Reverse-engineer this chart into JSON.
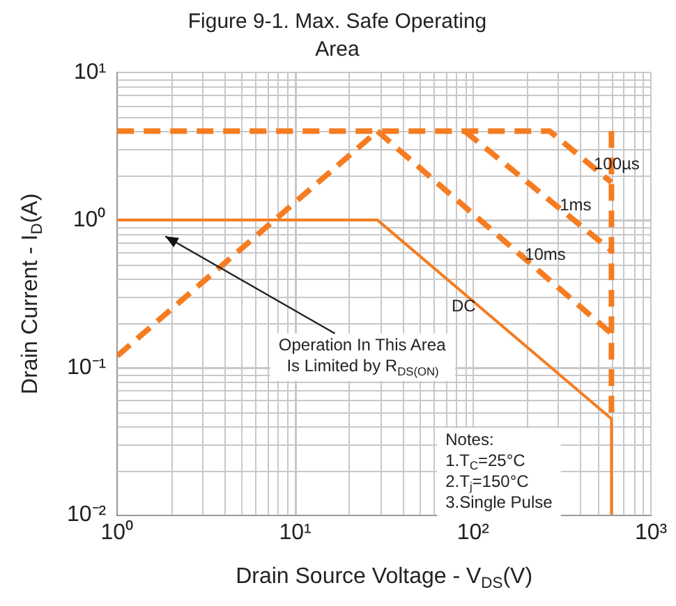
{
  "chart_data": {
    "type": "line",
    "title": "Figure 9-1. Max. Safe Operating Area",
    "xlabel": "Drain Source Voltage - V$_{DS}$(V)",
    "ylabel": "Drain Current - I$_{D}$(A)",
    "log": "xy",
    "xlim": [
      1,
      1000
    ],
    "ylim": [
      0.01,
      10
    ],
    "xticks": [
      {
        "value": 1,
        "label": "10⁰"
      },
      {
        "value": 10,
        "label": "10¹"
      },
      {
        "value": 100,
        "label": "10²"
      },
      {
        "value": 1000,
        "label": "10³"
      }
    ],
    "yticks": [
      {
        "value": 0.01,
        "label": "10⁻²"
      },
      {
        "value": 0.1,
        "label": "10⁻¹"
      },
      {
        "value": 1,
        "label": "10⁰"
      },
      {
        "value": 10,
        "label": "10¹"
      }
    ],
    "grid": true,
    "legend": false,
    "marker": "none",
    "series": [
      {
        "color": "#f57c20",
        "line_style": "dashed",
        "x": [
          1,
          29
        ],
        "values": [
          0.12,
          4
        ]
      },
      {
        "name": "100µs",
        "color": "#f57c20",
        "line_style": "dashed",
        "x": [
          1,
          270,
          600
        ],
        "values": [
          4,
          4,
          1.8
        ]
      },
      {
        "name": "1ms",
        "color": "#f57c20",
        "line_style": "dashed",
        "x": [
          90,
          600
        ],
        "values": [
          4,
          0.62
        ]
      },
      {
        "name": "10ms",
        "color": "#f57c20",
        "line_style": "dashed",
        "x": [
          29,
          600
        ],
        "values": [
          4,
          0.17
        ]
      },
      {
        "color": "#f57c20",
        "line_style": "dashed",
        "x": [
          600,
          600
        ],
        "values": [
          4,
          0.045
        ]
      },
      {
        "name": "DC",
        "color": "#f57c20",
        "line_style": "solid",
        "x": [
          1,
          29,
          600,
          600
        ],
        "values": [
          1,
          1,
          0.045,
          0.01
        ]
      }
    ],
    "annotations": [
      "Operation In This Area\nIs Limited by R$_{DS(ON)}$",
      "Notes:\n1.T$_{C}$=25°C\n2.T$_{j}$=150°C\n3.Single Pulse"
    ]
  }
}
